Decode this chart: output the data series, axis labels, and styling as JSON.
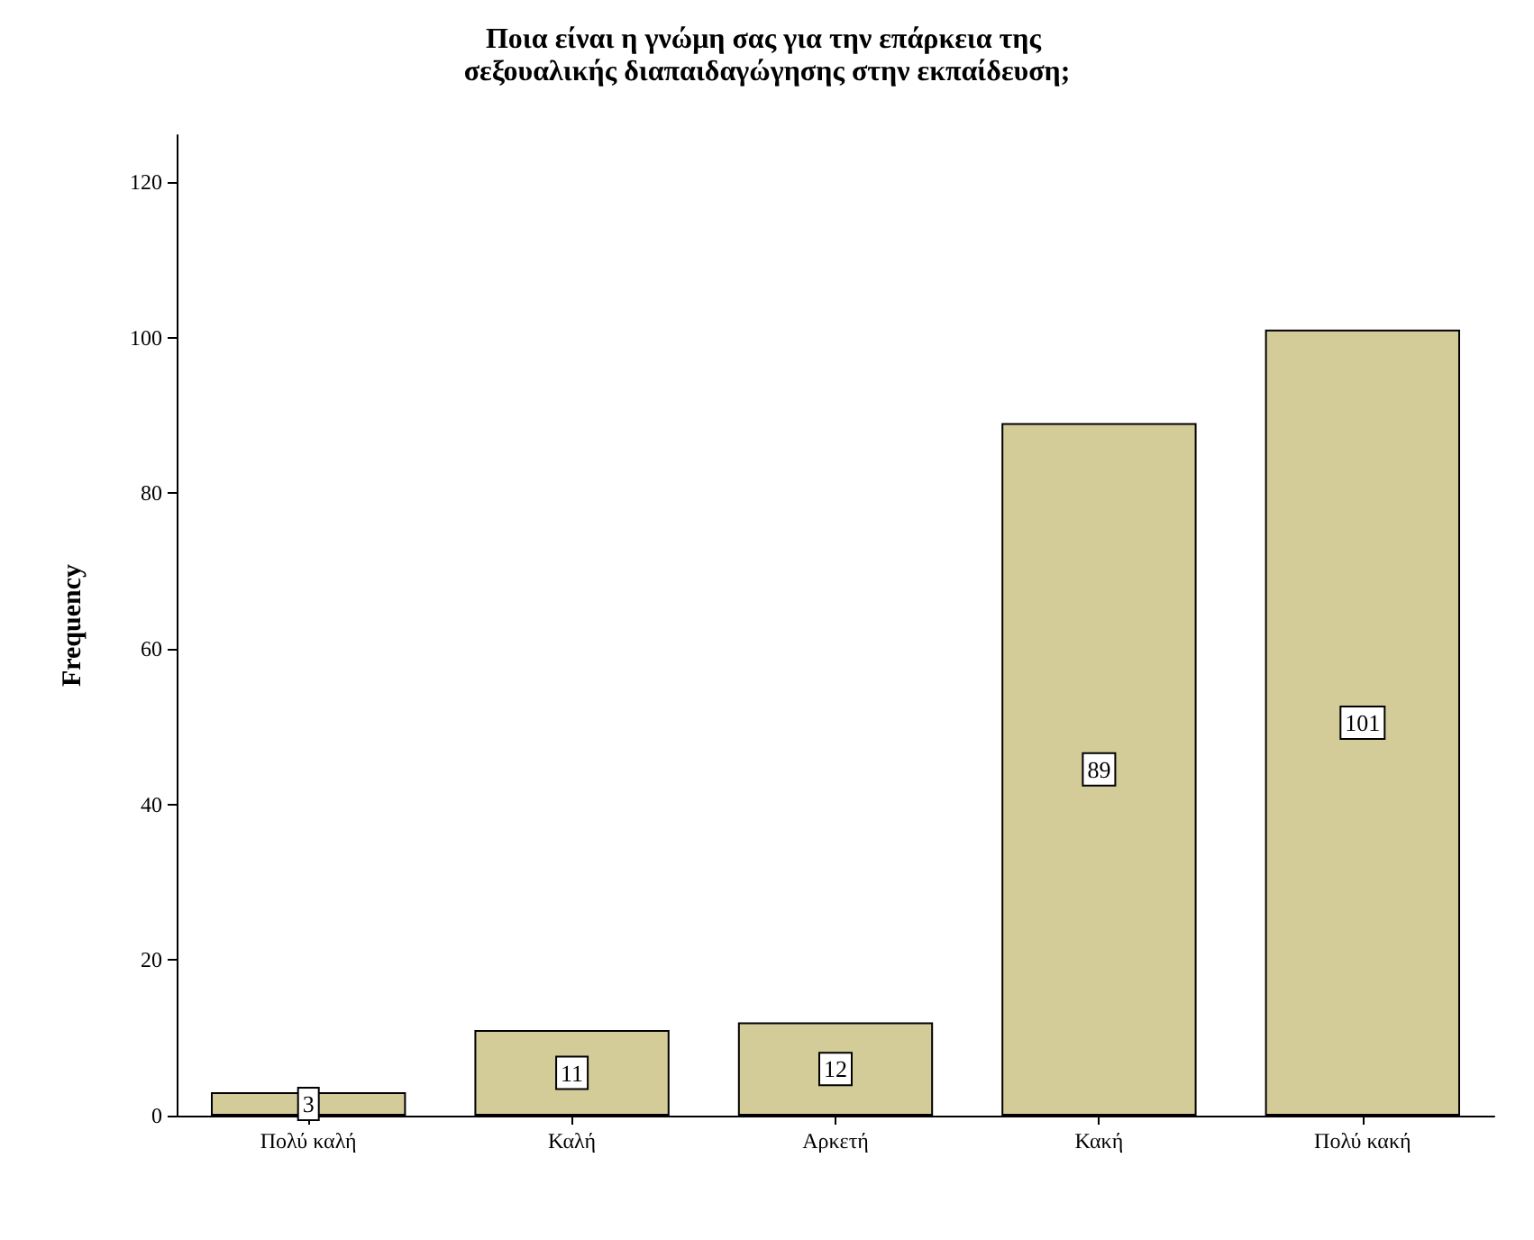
{
  "chart_data": {
    "type": "bar",
    "title": "Ποια είναι η γνώμη σας για την επάρκεια της σεξουαλικής διαπαιδαγώγησης στην εκπαίδευση;",
    "ylabel": "Frequency",
    "categories": [
      "Πολύ καλή",
      "Καλή",
      "Αρκετή",
      "Κακή",
      "Πολύ κακή"
    ],
    "values": [
      3,
      11,
      12,
      89,
      101
    ],
    "color": "#d4cc98",
    "ylim": [
      0,
      126
    ],
    "yticks": [
      0,
      20,
      40,
      60,
      80,
      100,
      120
    ],
    "grid": false,
    "data_labels": true
  }
}
